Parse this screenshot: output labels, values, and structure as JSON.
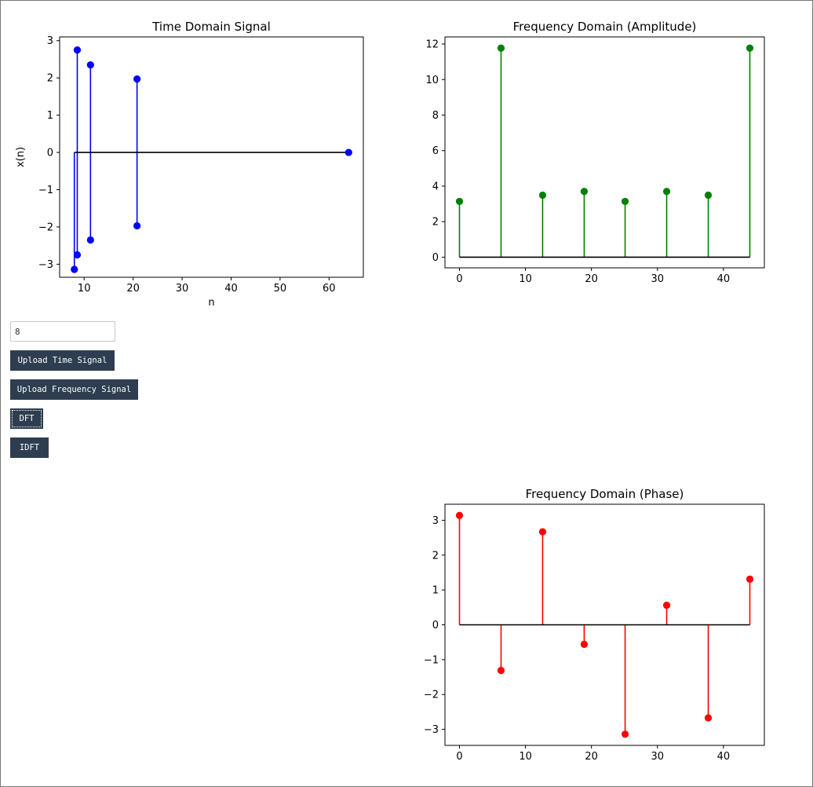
{
  "controls": {
    "n_input_value": "8",
    "upload_time_label": "Upload Time Signal",
    "upload_freq_label": "Upload Frequency Signal",
    "dft_label": "DFT",
    "idft_label": "IDFT"
  },
  "chart_data": [
    {
      "type": "stem",
      "title": "Time Domain Signal",
      "xlabel": "n",
      "ylabel": "x(n)",
      "color": "#0000ff",
      "x": [
        8.0,
        8.6,
        8.6,
        11.3,
        11.3,
        20.8,
        20.8,
        64.0
      ],
      "y": [
        -3.14,
        2.75,
        -2.75,
        2.35,
        -2.35,
        1.97,
        -1.97,
        0.0
      ],
      "xlim": [
        5,
        67
      ],
      "ylim": [
        -3.35,
        3.1
      ],
      "xticks": [
        10,
        20,
        30,
        40,
        50,
        60
      ],
      "yticks": [
        -3,
        -2,
        -1,
        0,
        1,
        2,
        3
      ],
      "baseline": [
        8,
        64
      ]
    },
    {
      "type": "stem",
      "title": "Frequency Domain (Amplitude)",
      "xlabel": "",
      "ylabel": "",
      "color": "#008000",
      "x": [
        0.0,
        6.3,
        12.6,
        18.9,
        25.1,
        31.4,
        37.7,
        44.0
      ],
      "y": [
        3.14,
        11.77,
        3.49,
        3.7,
        3.14,
        3.7,
        3.49,
        11.77
      ],
      "xlim": [
        -2.2,
        46.2
      ],
      "ylim": [
        -0.6,
        12.4
      ],
      "xticks": [
        0,
        10,
        20,
        30,
        40
      ],
      "yticks": [
        0,
        2,
        4,
        6,
        8,
        10,
        12
      ],
      "baseline": [
        0,
        44
      ]
    },
    {
      "type": "stem",
      "title": "Frequency Domain (Phase)",
      "xlabel": "",
      "ylabel": "",
      "color": "#ff0000",
      "x": [
        0.0,
        6.3,
        12.6,
        18.9,
        25.1,
        31.4,
        37.7,
        44.0
      ],
      "y": [
        3.14,
        -1.31,
        2.67,
        -0.56,
        -3.14,
        0.56,
        -2.67,
        1.31
      ],
      "xlim": [
        -2.2,
        46.2
      ],
      "ylim": [
        -3.46,
        3.46
      ],
      "xticks": [
        0,
        10,
        20,
        30,
        40
      ],
      "yticks": [
        -3,
        -2,
        -1,
        0,
        1,
        2,
        3
      ],
      "baseline": [
        0,
        44
      ]
    }
  ]
}
